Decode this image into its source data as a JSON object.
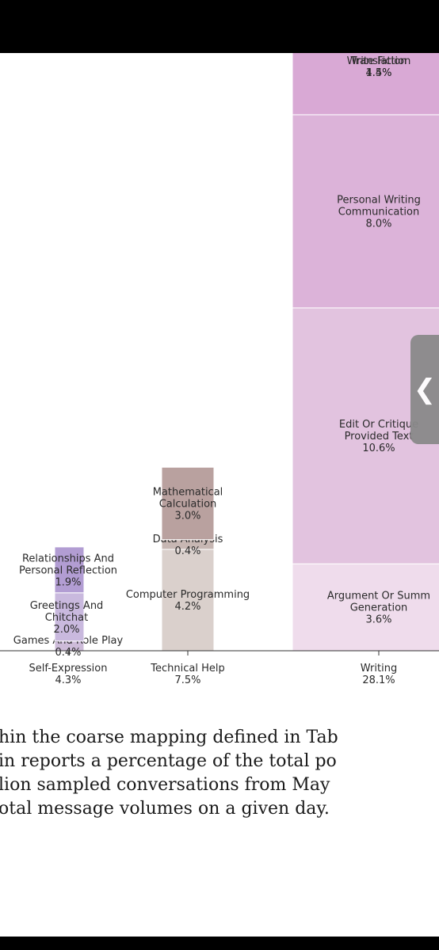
{
  "chart_data": {
    "type": "bar",
    "title": "",
    "xlabel": "",
    "ylabel": "",
    "columns": [
      {
        "name": "Self-Expression",
        "total": "4.3%",
        "segments": [
          {
            "name": "Games And Role Play",
            "value": 0.4,
            "label_lines": [
              "Games And Role Play"
            ],
            "pct": "0.4%",
            "color": "#cdbbd9"
          },
          {
            "name": "Greetings And Chitchat",
            "value": 2.0,
            "label_lines": [
              "Greetings And",
              "Chitchat"
            ],
            "pct": "2.0%",
            "color": "#c9b9de"
          },
          {
            "name": "Relationships And Personal Reflection",
            "value": 1.9,
            "label_lines": [
              "Relationships And",
              "Personal Reflection"
            ],
            "pct": "1.9%",
            "color": "#b29dd3"
          }
        ]
      },
      {
        "name": "Technical Help",
        "total": "7.5%",
        "segments": [
          {
            "name": "Computer Programming",
            "value": 4.2,
            "label_lines": [
              "Computer Programming"
            ],
            "pct": "4.2%",
            "color": "#dad0cc"
          },
          {
            "name": "Data Analysis",
            "value": 0.4,
            "label_lines": [
              "Data Analysis"
            ],
            "pct": "0.4%",
            "color": "#c7b7b3"
          },
          {
            "name": "Mathematical Calculation",
            "value": 3.0,
            "label_lines": [
              "Mathematical",
              "Calculation"
            ],
            "pct": "3.0%",
            "color": "#b9a19f"
          }
        ]
      },
      {
        "name": "Writing",
        "total": "28.1%",
        "segments": [
          {
            "name": "Argument Or Summary Generation",
            "value": 3.6,
            "label_lines": [
              "Argument Or Summ",
              "Generation"
            ],
            "pct": "3.6%",
            "color": "#efdcec"
          },
          {
            "name": "Edit Or Critique Provided Text",
            "value": 10.6,
            "label_lines": [
              "Edit Or Critique",
              "Provided Text"
            ],
            "pct": "10.6%",
            "color": "#e2c3df"
          },
          {
            "name": "Personal Writing Or Communication",
            "value": 8.0,
            "label_lines": [
              "Personal Writing",
              "Communication"
            ],
            "pct": "8.0%",
            "color": "#dcb3d9"
          },
          {
            "name": "Translation",
            "value": 4.5,
            "label_lines": [
              "Translation"
            ],
            "pct": "4.5%",
            "color": "#d9a9d5"
          },
          {
            "name": "Write Fiction",
            "value": 1.4,
            "label_lines": [
              "Write Fiction"
            ],
            "pct": "1.4%",
            "color": "#cf98cd"
          }
        ]
      }
    ]
  },
  "caption": {
    "lines": [
      "hin the coarse mapping defined in Tab",
      "in reports a percentage of the total po",
      "lion sampled conversations from May",
      "otal message volumes on a given day."
    ]
  },
  "handle": {
    "icon": "chevron-left-icon",
    "glyph": "❮"
  }
}
